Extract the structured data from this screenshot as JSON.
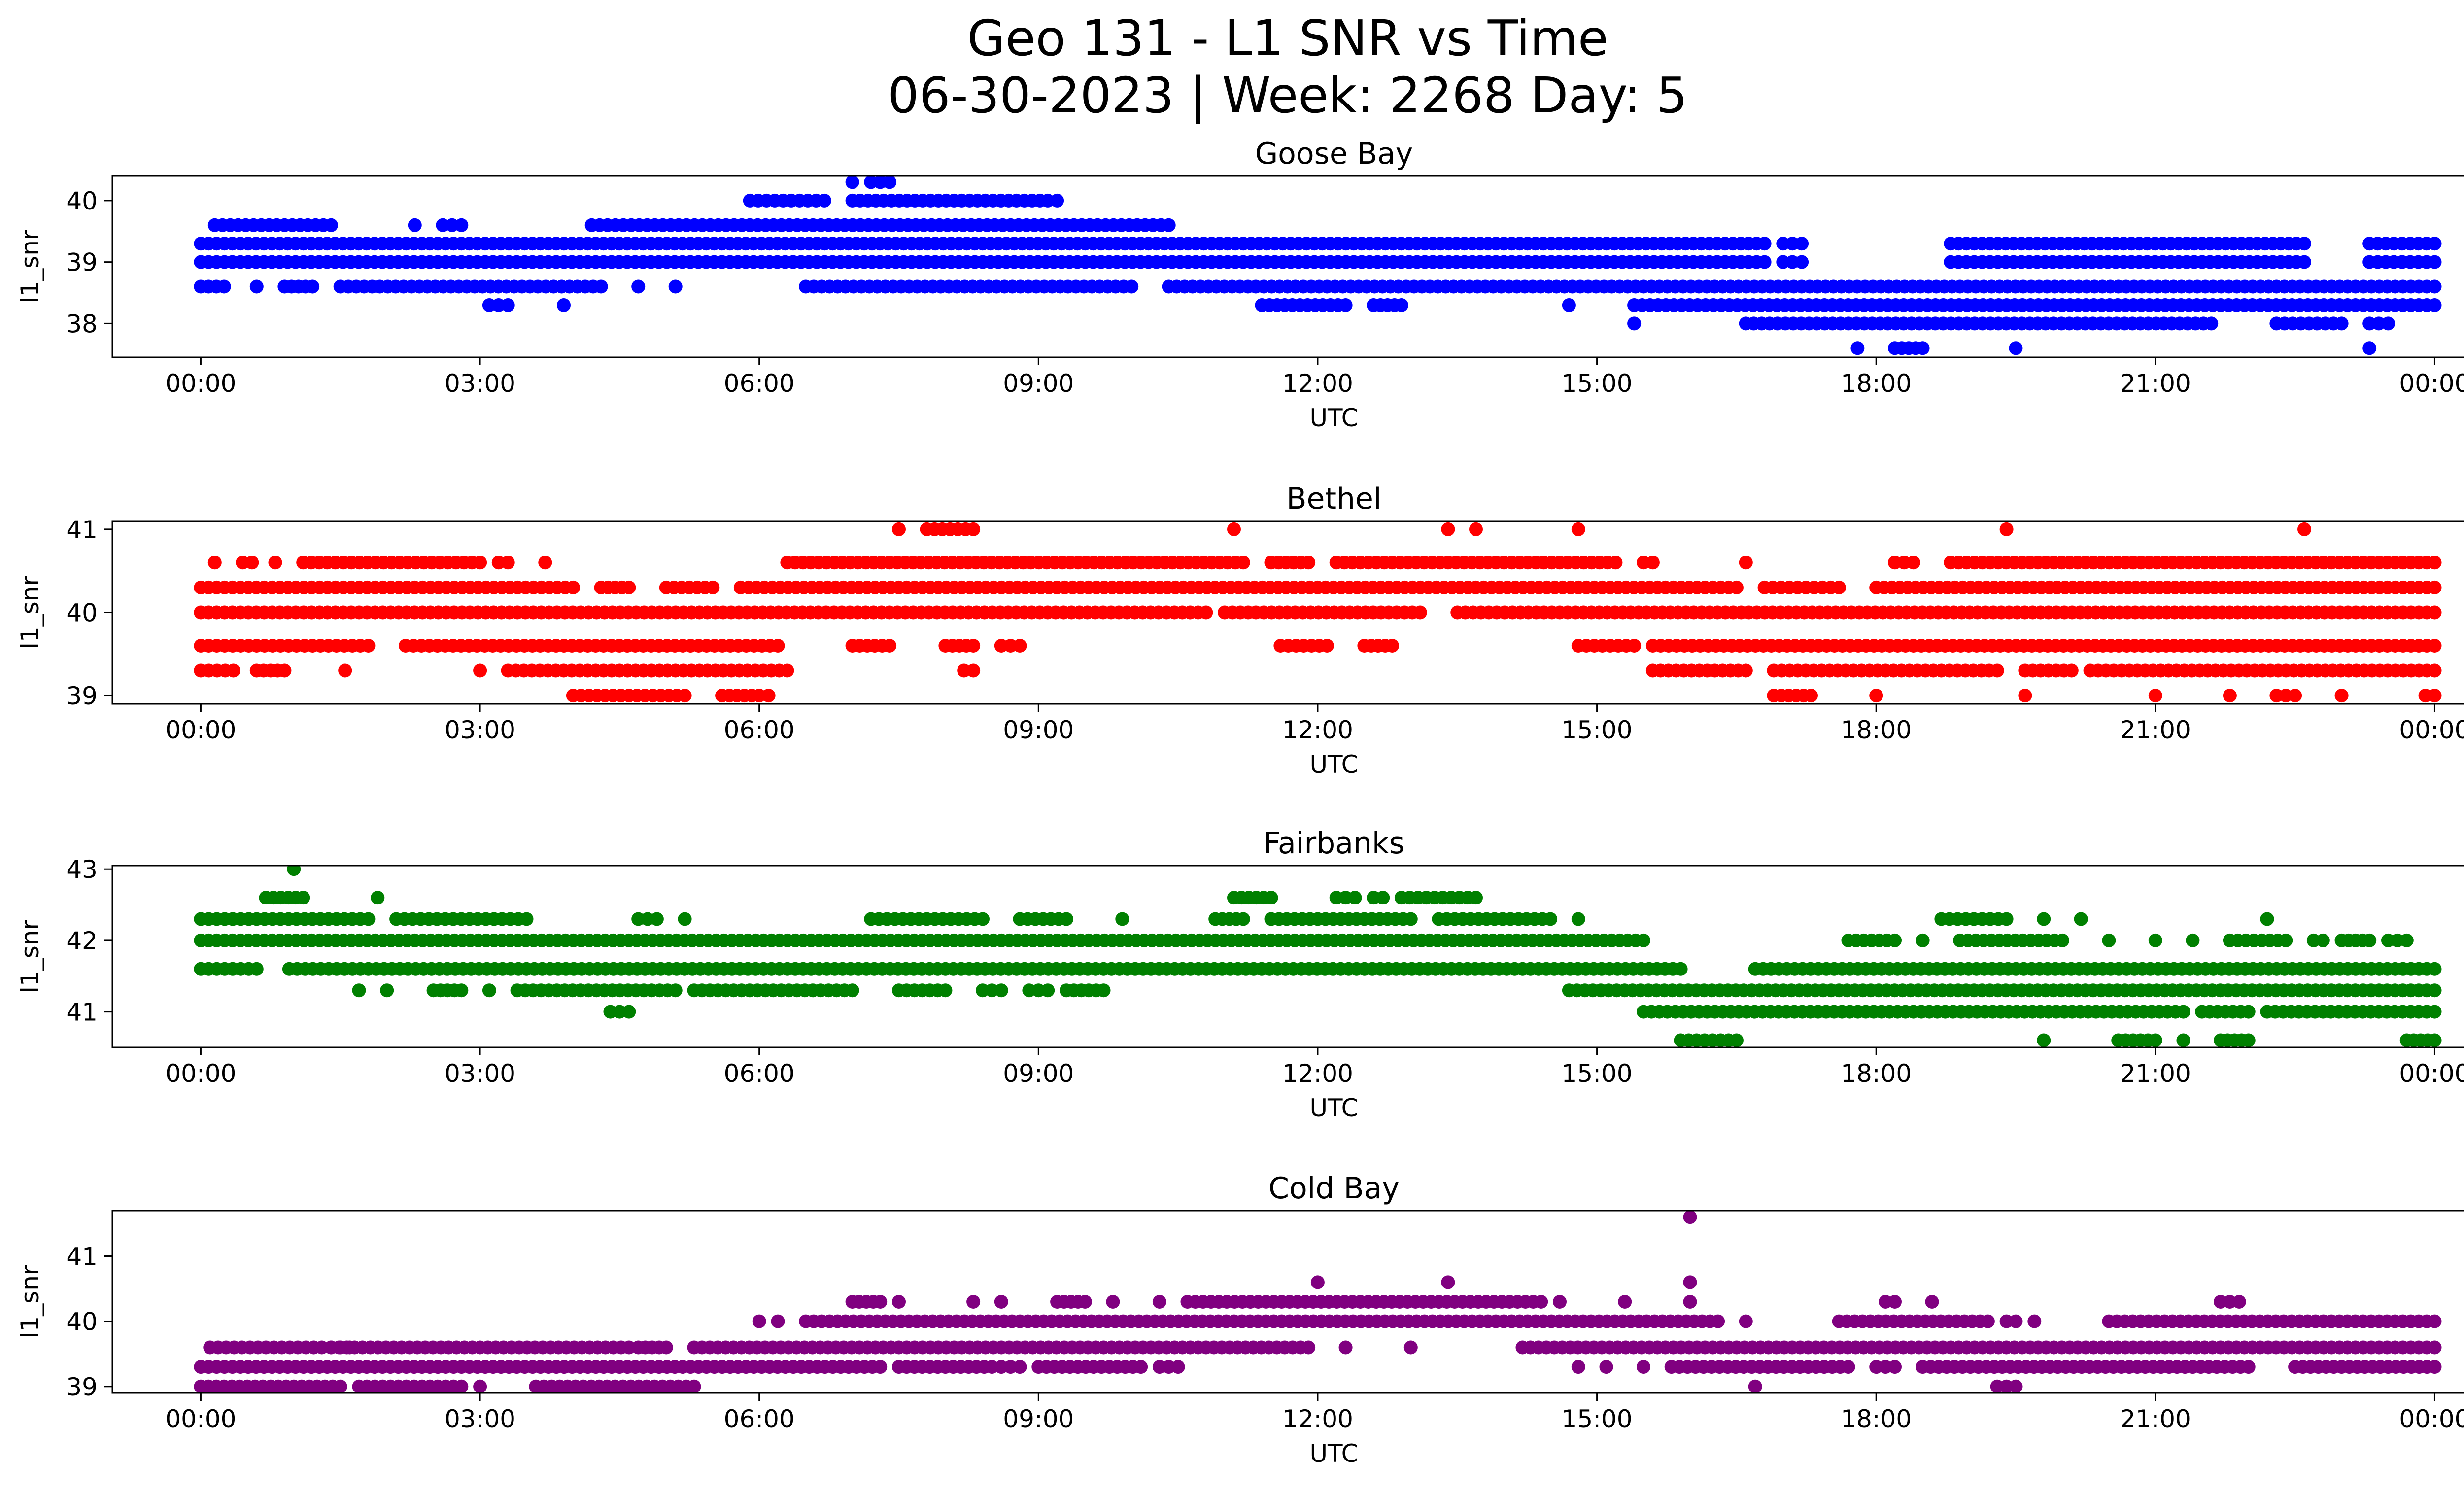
{
  "title_lines": [
    "Geo 131 - L1 SNR vs Time",
    "06-30-2023 | Week: 2268 Day: 5"
  ],
  "chart_data": [
    {
      "type": "scatter",
      "title": "Goose Bay",
      "xlabel": "UTC",
      "ylabel": "l1_snr",
      "color": "#0000ff",
      "xlim": [
        -0.95,
        25.3
      ],
      "ylim": [
        37.45,
        40.4
      ],
      "xticks": [
        "00:00",
        "03:00",
        "06:00",
        "09:00",
        "12:00",
        "15:00",
        "18:00",
        "21:00",
        "00:00"
      ],
      "yticks": [
        38,
        39,
        40
      ],
      "levels": [
        {
          "y": 39.3,
          "ranges": [
            [
              0,
              16.8
            ],
            [
              17.0,
              17.2
            ],
            [
              18.8,
              22.6
            ],
            [
              23.3,
              24.0
            ]
          ]
        },
        {
          "y": 39.0,
          "ranges": [
            [
              0,
              16.8
            ],
            [
              17.0,
              17.2
            ],
            [
              18.8,
              22.6
            ],
            [
              23.3,
              24.0
            ]
          ]
        },
        {
          "y": 39.6,
          "ranges": [
            [
              0.15,
              1.4
            ],
            [
              2.3,
              2.3
            ],
            [
              2.6,
              2.8
            ],
            [
              4.2,
              10.4
            ]
          ]
        },
        {
          "y": 38.6,
          "ranges": [
            [
              0,
              0.25
            ],
            [
              0.6,
              0.6
            ],
            [
              0.9,
              1.2
            ],
            [
              1.5,
              4.3
            ],
            [
              4.7,
              4.7
            ],
            [
              5.1,
              5.1
            ],
            [
              6.5,
              10.0
            ],
            [
              10.4,
              24.0
            ]
          ]
        },
        {
          "y": 38.3,
          "ranges": [
            [
              3.1,
              3.3
            ],
            [
              3.9,
              3.9
            ],
            [
              11.4,
              12.3
            ],
            [
              12.6,
              12.9
            ],
            [
              14.7,
              14.7
            ],
            [
              15.4,
              24.0
            ]
          ]
        },
        {
          "y": 38.0,
          "ranges": [
            [
              15.4,
              15.4
            ],
            [
              16.6,
              21.6
            ],
            [
              22.3,
              23.0
            ],
            [
              23.3,
              23.5
            ]
          ]
        },
        {
          "y": 37.6,
          "ranges": [
            [
              17.8,
              17.8
            ],
            [
              18.2,
              18.5
            ],
            [
              19.5,
              19.5
            ],
            [
              23.3,
              23.3
            ]
          ]
        },
        {
          "y": 40.0,
          "ranges": [
            [
              5.9,
              6.7
            ],
            [
              7.0,
              9.1
            ],
            [
              9.2,
              9.2
            ]
          ]
        },
        {
          "y": 40.3,
          "ranges": [
            [
              7.0,
              7.0
            ],
            [
              7.2,
              7.4
            ]
          ]
        }
      ]
    },
    {
      "type": "scatter",
      "title": "Bethel",
      "xlabel": "UTC",
      "ylabel": "l1_snr",
      "color": "#ff0000",
      "xlim": [
        -0.95,
        25.3
      ],
      "ylim": [
        38.9,
        41.1
      ],
      "xticks": [
        "00:00",
        "03:00",
        "06:00",
        "09:00",
        "12:00",
        "15:00",
        "18:00",
        "21:00",
        "00:00"
      ],
      "yticks": [
        39,
        40,
        41
      ],
      "levels": [
        {
          "y": 40.0,
          "ranges": [
            [
              0,
              10.8
            ],
            [
              11.0,
              13.1
            ],
            [
              13.5,
              24.0
            ]
          ]
        },
        {
          "y": 40.3,
          "ranges": [
            [
              0,
              4.0
            ],
            [
              4.3,
              4.6
            ],
            [
              5.0,
              5.5
            ],
            [
              5.8,
              16.5
            ],
            [
              16.8,
              17.6
            ],
            [
              18.0,
              24.0
            ]
          ]
        },
        {
          "y": 39.6,
          "ranges": [
            [
              0,
              1.8
            ],
            [
              2.2,
              6.2
            ],
            [
              7.0,
              7.4
            ],
            [
              8.0,
              8.3
            ],
            [
              8.6,
              8.8
            ],
            [
              11.6,
              12.1
            ],
            [
              12.5,
              12.8
            ],
            [
              14.8,
              15.4
            ],
            [
              15.6,
              24.0
            ]
          ]
        },
        {
          "y": 40.6,
          "ranges": [
            [
              0.15,
              0.15
            ],
            [
              0.45,
              0.55
            ],
            [
              0.8,
              0.8
            ],
            [
              1.1,
              3.0
            ],
            [
              3.2,
              3.3
            ],
            [
              3.7,
              3.7
            ],
            [
              6.3,
              11.2
            ],
            [
              11.5,
              11.9
            ],
            [
              12.2,
              15.2
            ],
            [
              15.5,
              15.6
            ],
            [
              16.6,
              16.6
            ],
            [
              18.2,
              18.4
            ],
            [
              18.8,
              24.0
            ]
          ]
        },
        {
          "y": 39.3,
          "ranges": [
            [
              0,
              0.35
            ],
            [
              0.6,
              0.9
            ],
            [
              1.55,
              1.55
            ],
            [
              3.0,
              3.0
            ],
            [
              3.3,
              6.3
            ],
            [
              8.2,
              8.3
            ],
            [
              15.6,
              16.6
            ],
            [
              16.9,
              19.3
            ],
            [
              19.6,
              20.1
            ],
            [
              20.3,
              24.0
            ]
          ]
        },
        {
          "y": 39.0,
          "ranges": [
            [
              4.0,
              5.2
            ],
            [
              5.6,
              6.0
            ],
            [
              6.1,
              6.1
            ],
            [
              16.9,
              17.3
            ],
            [
              18.0,
              18.0
            ],
            [
              19.6,
              19.6
            ],
            [
              21.0,
              21.0
            ],
            [
              21.8,
              21.8
            ],
            [
              22.3,
              22.5
            ],
            [
              23.0,
              23.0
            ],
            [
              23.9,
              24.0
            ]
          ]
        },
        {
          "y": 41.0,
          "ranges": [
            [
              7.5,
              7.5
            ],
            [
              7.8,
              8.3
            ],
            [
              11.1,
              11.1
            ],
            [
              13.4,
              13.4
            ],
            [
              13.7,
              13.7
            ],
            [
              14.8,
              14.8
            ],
            [
              19.4,
              19.4
            ],
            [
              22.6,
              22.6
            ]
          ]
        }
      ]
    },
    {
      "type": "scatter",
      "title": "Fairbanks",
      "xlabel": "UTC",
      "ylabel": "l1_snr",
      "color": "#008000",
      "xlim": [
        -0.95,
        25.3
      ],
      "ylim": [
        40.5,
        43.05
      ],
      "xticks": [
        "00:00",
        "03:00",
        "06:00",
        "09:00",
        "12:00",
        "15:00",
        "18:00",
        "21:00",
        "00:00"
      ],
      "yticks": [
        41,
        42,
        43
      ],
      "levels": [
        {
          "y": 42.0,
          "ranges": [
            [
              0,
              15.5
            ],
            [
              17.7,
              18.2
            ],
            [
              18.5,
              18.5
            ],
            [
              18.9,
              20.0
            ],
            [
              20.5,
              20.5
            ],
            [
              21.0,
              21.0
            ],
            [
              21.4,
              21.4
            ],
            [
              21.8,
              22.4
            ],
            [
              22.7,
              22.8
            ],
            [
              23.0,
              23.3
            ],
            [
              23.5,
              23.7
            ]
          ]
        },
        {
          "y": 41.6,
          "ranges": [
            [
              0,
              0.6
            ],
            [
              0.95,
              15.9
            ],
            [
              16.7,
              24.0
            ]
          ]
        },
        {
          "y": 41.3,
          "ranges": [
            [
              1.7,
              1.7
            ],
            [
              2.0,
              2.0
            ],
            [
              2.5,
              2.8
            ],
            [
              3.1,
              3.1
            ],
            [
              3.4,
              5.1
            ],
            [
              5.3,
              7.0
            ],
            [
              7.5,
              8.0
            ],
            [
              8.4,
              8.6
            ],
            [
              8.9,
              9.1
            ],
            [
              9.3,
              9.7
            ],
            [
              14.7,
              24.0
            ]
          ]
        },
        {
          "y": 42.3,
          "ranges": [
            [
              0,
              1.8
            ],
            [
              2.1,
              3.5
            ],
            [
              4.7,
              4.9
            ],
            [
              5.2,
              5.2
            ],
            [
              7.2,
              8.4
            ],
            [
              8.8,
              9.3
            ],
            [
              9.9,
              9.9
            ],
            [
              10.9,
              11.2
            ],
            [
              11.5,
              13.0
            ],
            [
              13.3,
              14.5
            ],
            [
              14.8,
              14.8
            ],
            [
              18.7,
              19.4
            ],
            [
              19.8,
              19.8
            ],
            [
              20.2,
              20.2
            ],
            [
              22.2,
              22.2
            ]
          ]
        },
        {
          "y": 42.6,
          "ranges": [
            [
              0.7,
              1.1
            ],
            [
              1.9,
              1.9
            ],
            [
              11.1,
              11.5
            ],
            [
              12.2,
              12.4
            ],
            [
              12.6,
              12.7
            ],
            [
              12.9,
              13.7
            ]
          ]
        },
        {
          "y": 43.0,
          "ranges": [
            [
              1.0,
              1.0
            ]
          ]
        },
        {
          "y": 41.0,
          "ranges": [
            [
              4.4,
              4.6
            ],
            [
              15.5,
              21.3
            ],
            [
              21.5,
              22.0
            ],
            [
              22.2,
              24.0
            ]
          ]
        },
        {
          "y": 40.6,
          "ranges": [
            [
              15.9,
              16.5
            ],
            [
              19.8,
              19.8
            ],
            [
              20.6,
              21.0
            ],
            [
              21.3,
              21.3
            ],
            [
              21.7,
              22.0
            ],
            [
              23.7,
              24.0
            ]
          ]
        }
      ]
    },
    {
      "type": "scatter",
      "title": "Cold Bay",
      "xlabel": "UTC",
      "ylabel": "l1_snr",
      "color": "#800080",
      "xlim": [
        -0.95,
        25.3
      ],
      "ylim": [
        38.9,
        41.7
      ],
      "xticks": [
        "00:00",
        "03:00",
        "06:00",
        "09:00",
        "12:00",
        "15:00",
        "18:00",
        "21:00",
        "00:00"
      ],
      "yticks": [
        39,
        40,
        41
      ],
      "levels": [
        {
          "y": 39.3,
          "ranges": [
            [
              0,
              7.3
            ],
            [
              7.5,
              8.5
            ],
            [
              8.6,
              8.8
            ],
            [
              9.0,
              10.1
            ],
            [
              10.3,
              10.5
            ],
            [
              14.8,
              14.8
            ],
            [
              15.1,
              15.1
            ],
            [
              15.5,
              15.5
            ],
            [
              15.8,
              17.7
            ],
            [
              18.0,
              18.2
            ],
            [
              18.5,
              22.0
            ],
            [
              22.5,
              24.0
            ]
          ]
        },
        {
          "y": 39.6,
          "ranges": [
            [
              0.1,
              1.3
            ],
            [
              1.4,
              1.6
            ],
            [
              1.4,
              4.6
            ],
            [
              4.7,
              5.0
            ],
            [
              5.3,
              11.9
            ],
            [
              12.3,
              12.3
            ],
            [
              13.0,
              13.0
            ],
            [
              14.2,
              24.0
            ]
          ]
        },
        {
          "y": 39.0,
          "ranges": [
            [
              0,
              1.5
            ],
            [
              1.7,
              2.8
            ],
            [
              3.0,
              3.0
            ],
            [
              3.6,
              5.3
            ],
            [
              16.7,
              16.7
            ],
            [
              19.3,
              19.5
            ]
          ]
        },
        {
          "y": 40.0,
          "ranges": [
            [
              6.0,
              6.0
            ],
            [
              6.2,
              6.2
            ],
            [
              6.5,
              16.3
            ],
            [
              16.6,
              16.6
            ],
            [
              17.6,
              19.2
            ],
            [
              19.4,
              19.5
            ],
            [
              19.7,
              19.7
            ],
            [
              20.5,
              24.0
            ]
          ]
        },
        {
          "y": 40.3,
          "ranges": [
            [
              7.0,
              7.3
            ],
            [
              7.5,
              7.5
            ],
            [
              8.3,
              8.3
            ],
            [
              8.6,
              8.6
            ],
            [
              9.2,
              9.5
            ],
            [
              9.8,
              9.8
            ],
            [
              10.3,
              10.3
            ],
            [
              10.6,
              14.4
            ],
            [
              14.6,
              14.6
            ],
            [
              15.3,
              15.3
            ],
            [
              16.0,
              16.0
            ],
            [
              18.1,
              18.2
            ],
            [
              18.6,
              18.6
            ],
            [
              21.7,
              21.9
            ]
          ]
        },
        {
          "y": 40.6,
          "ranges": [
            [
              12.0,
              12.0
            ],
            [
              13.4,
              13.4
            ],
            [
              16.0,
              16.0
            ]
          ]
        },
        {
          "y": 41.6,
          "ranges": [
            [
              16.0,
              16.0
            ]
          ]
        }
      ]
    }
  ]
}
